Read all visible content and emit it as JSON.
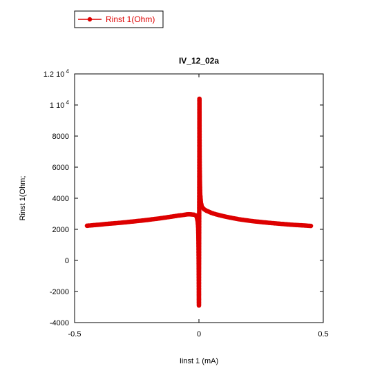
{
  "legend": {
    "label": "Rinst 1(Ohm)"
  },
  "chart_data": {
    "type": "line",
    "title": "IV_12_02a",
    "xlabel": "Iinst 1 (mA)",
    "ylabel": "Rinst 1(Ohm;",
    "xlim": [
      -0.5,
      0.5
    ],
    "ylim": [
      -4000,
      12000
    ],
    "x_ticks": [
      {
        "value": -0.5,
        "label": "-0.5"
      },
      {
        "value": 0,
        "label": "0"
      },
      {
        "value": 0.5,
        "label": "0.5"
      }
    ],
    "y_ticks": [
      {
        "value": -4000,
        "label": "-4000",
        "exp": ""
      },
      {
        "value": -2000,
        "label": "-2000",
        "exp": ""
      },
      {
        "value": 0,
        "label": "0",
        "exp": ""
      },
      {
        "value": 2000,
        "label": "2000",
        "exp": ""
      },
      {
        "value": 4000,
        "label": "4000",
        "exp": ""
      },
      {
        "value": 6000,
        "label": "6000",
        "exp": ""
      },
      {
        "value": 8000,
        "label": "8000",
        "exp": ""
      },
      {
        "value": 10000,
        "label": "1 10",
        "exp": "4"
      },
      {
        "value": 12000,
        "label": "1.2 10",
        "exp": "4"
      }
    ],
    "grid": false,
    "legend_position": "top-left",
    "series": [
      {
        "name": "Rinst 1(Ohm)",
        "color": "#dd0000",
        "marker": "circle",
        "points": [
          [
            -0.45,
            2230
          ],
          [
            -0.43,
            2260
          ],
          [
            -0.4,
            2300
          ],
          [
            -0.37,
            2350
          ],
          [
            -0.34,
            2390
          ],
          [
            -0.31,
            2430
          ],
          [
            -0.28,
            2480
          ],
          [
            -0.25,
            2530
          ],
          [
            -0.22,
            2580
          ],
          [
            -0.19,
            2640
          ],
          [
            -0.16,
            2700
          ],
          [
            -0.13,
            2770
          ],
          [
            -0.1,
            2840
          ],
          [
            -0.08,
            2890
          ],
          [
            -0.06,
            2930
          ],
          [
            -0.05,
            2960
          ],
          [
            -0.04,
            2970
          ],
          [
            -0.03,
            2960
          ],
          [
            -0.02,
            2940
          ],
          [
            -0.012,
            2900
          ],
          [
            -0.008,
            2750
          ],
          [
            -0.005,
            2500
          ],
          [
            -0.003,
            2100
          ],
          [
            -0.002,
            1400
          ],
          [
            -0.0015,
            600
          ],
          [
            -0.001,
            -300
          ],
          [
            -0.0005,
            -1500
          ],
          [
            0.0,
            -2900
          ],
          [
            0.0003,
            -1200
          ],
          [
            0.0006,
            300
          ],
          [
            0.0009,
            1800
          ],
          [
            0.0012,
            3400
          ],
          [
            0.0015,
            5200
          ],
          [
            0.0018,
            7300
          ],
          [
            0.002,
            10400
          ],
          [
            0.0023,
            8700
          ],
          [
            0.0026,
            7400
          ],
          [
            0.003,
            6100
          ],
          [
            0.004,
            5000
          ],
          [
            0.005,
            4300
          ],
          [
            0.008,
            3700
          ],
          [
            0.012,
            3450
          ],
          [
            0.02,
            3300
          ],
          [
            0.03,
            3200
          ],
          [
            0.05,
            3060
          ],
          [
            0.07,
            2960
          ],
          [
            0.1,
            2840
          ],
          [
            0.13,
            2740
          ],
          [
            0.16,
            2650
          ],
          [
            0.19,
            2580
          ],
          [
            0.22,
            2520
          ],
          [
            0.25,
            2470
          ],
          [
            0.28,
            2420
          ],
          [
            0.31,
            2380
          ],
          [
            0.34,
            2340
          ],
          [
            0.37,
            2300
          ],
          [
            0.4,
            2270
          ],
          [
            0.43,
            2240
          ],
          [
            0.45,
            2220
          ]
        ]
      }
    ]
  }
}
